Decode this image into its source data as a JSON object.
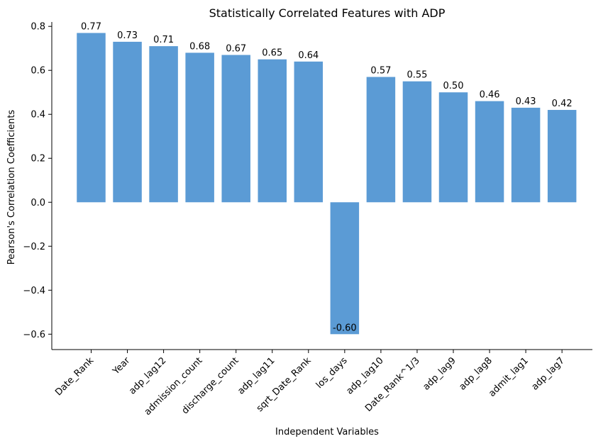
{
  "chart_data": {
    "type": "bar",
    "title": "Statistically Correlated Features with ADP",
    "xlabel": "Independent Variables",
    "ylabel": "Pearson's Correlation Coefficients",
    "categories": [
      "Date_Rank",
      "Year",
      "adp_lag12",
      "admission_count",
      "discharge_count",
      "adp_lag11",
      "sqrt_Date_Rank",
      "los_days",
      "adp_lag10",
      "Date_Rank^1/3",
      "adp_lag9",
      "adp_lag8",
      "admit_lag1",
      "adp_lag7"
    ],
    "values": [
      0.77,
      0.73,
      0.71,
      0.68,
      0.67,
      0.65,
      0.64,
      -0.6,
      0.57,
      0.55,
      0.5,
      0.46,
      0.43,
      0.42
    ],
    "data_labels": [
      "0.77",
      "0.73",
      "0.71",
      "0.68",
      "0.67",
      "0.65",
      "0.64",
      "-0.60",
      "0.57",
      "0.55",
      "0.50",
      "0.46",
      "0.43",
      "0.42"
    ],
    "ylim": [
      -0.67,
      0.82
    ],
    "yticks": [
      -0.6,
      -0.4,
      -0.2,
      0.0,
      0.2,
      0.4,
      0.6,
      0.8
    ],
    "ytick_labels": [
      "−0.6",
      "−0.4",
      "−0.2",
      "0.0",
      "0.2",
      "0.4",
      "0.6",
      "0.8"
    ],
    "bar_color": "#5b9bd5",
    "grid": false,
    "legend": "none"
  }
}
